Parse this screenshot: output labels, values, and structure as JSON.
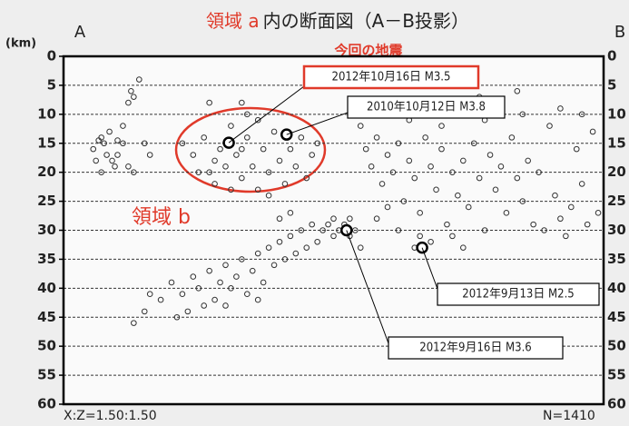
{
  "chart_data": {
    "type": "scatter",
    "title_highlight": "領域 a",
    "title": "内の断面図（A－B投影）",
    "corner_left": "A",
    "corner_right": "B",
    "ylabel": "(km)",
    "highlight_label": "今回の地震",
    "region_b_label": "領域 b",
    "ratio_label": "X:Z=1.50:1.50",
    "count_label": "N=1410",
    "xlim": [
      0,
      100
    ],
    "ylim": [
      0,
      60
    ],
    "y_inverted": true,
    "yticks": [
      0,
      5,
      10,
      15,
      20,
      25,
      30,
      35,
      40,
      45,
      50,
      55,
      60
    ],
    "grid": true,
    "series": [
      {
        "color": "#333333",
        "x": [
          7,
          7.5,
          8,
          6,
          9,
          10,
          6.5,
          8.5,
          10,
          11,
          12,
          13,
          5.5,
          9.5,
          12,
          12.5,
          13,
          14,
          11,
          7,
          15,
          16,
          22,
          24,
          26,
          27,
          28,
          29,
          30,
          31,
          32,
          33,
          34,
          35,
          36,
          37,
          38,
          39,
          40,
          41,
          42,
          43,
          44,
          45,
          46,
          47,
          34,
          36,
          28,
          31,
          25,
          33,
          38,
          27,
          33,
          55,
          56,
          57,
          58,
          59,
          60,
          61,
          62,
          63,
          64,
          65,
          66,
          67,
          68,
          69,
          70,
          71,
          72,
          73,
          74,
          75,
          76,
          77,
          78,
          79,
          80,
          81,
          82,
          83,
          84,
          85,
          86,
          87,
          88,
          89,
          90,
          91,
          92,
          93,
          94,
          95,
          96,
          97,
          98,
          99,
          62,
          65,
          68,
          74,
          60,
          58,
          64,
          70,
          78,
          85,
          92,
          96,
          77,
          84,
          66,
          72,
          48,
          49,
          50,
          51,
          52,
          53,
          54,
          50,
          53,
          47,
          55,
          46,
          20,
          22,
          24,
          25,
          27,
          28,
          29,
          30,
          31,
          32,
          33,
          34,
          35,
          36,
          37,
          38,
          39,
          40,
          41,
          42,
          43,
          44,
          45,
          26,
          23,
          18,
          15,
          13,
          16,
          21,
          36,
          30,
          40,
          42
        ],
        "values": [
          14,
          15,
          17,
          18,
          18,
          17,
          14.5,
          13,
          14.5,
          15,
          19,
          20,
          16,
          19,
          8,
          6,
          7,
          4,
          12,
          20,
          15,
          17,
          15,
          17,
          14,
          20,
          22,
          16,
          19,
          12,
          17,
          21,
          14,
          19,
          23,
          16,
          20,
          13,
          18,
          22,
          16,
          19,
          14,
          21,
          17,
          15,
          10,
          11,
          18,
          23,
          20,
          16,
          24,
          8,
          8,
          12,
          16,
          19,
          14,
          22,
          17,
          20,
          15,
          25,
          18,
          21,
          27,
          14,
          19,
          23,
          16,
          29,
          20,
          24,
          18,
          26,
          15,
          21,
          30,
          17,
          23,
          19,
          27,
          14,
          21,
          25,
          18,
          29,
          20,
          30,
          12,
          24,
          28,
          31,
          26,
          16,
          22,
          29,
          13,
          27,
          30,
          33,
          32,
          33,
          26,
          28,
          11,
          12,
          11,
          10,
          9,
          10,
          7,
          6,
          31,
          31,
          30,
          29,
          31,
          30,
          29,
          31,
          30,
          28,
          28,
          32,
          33,
          29,
          39,
          41,
          38,
          40,
          37,
          42,
          39,
          36,
          40,
          38,
          35,
          41,
          37,
          34,
          39,
          33,
          36,
          32,
          35,
          31,
          34,
          30,
          33,
          43,
          44,
          42,
          44,
          46,
          41,
          45,
          42,
          43,
          28,
          27
        ]
      },
      {
        "color": "#000000",
        "emphasis": true,
        "x": [
          30.6,
          41.3,
          66.4,
          52.4
        ],
        "values": [
          14.9,
          13.5,
          33,
          30
        ]
      }
    ],
    "annotations": [
      {
        "text": "2012年10月16日 M3.5",
        "point": 0,
        "highlight": true
      },
      {
        "text": "2010年10月12日 M3.8",
        "point": 1
      },
      {
        "text": "2012年9月13日 M2.5",
        "point": 2
      },
      {
        "text": "2012年9月16日 M3.6",
        "point": 3
      }
    ]
  }
}
